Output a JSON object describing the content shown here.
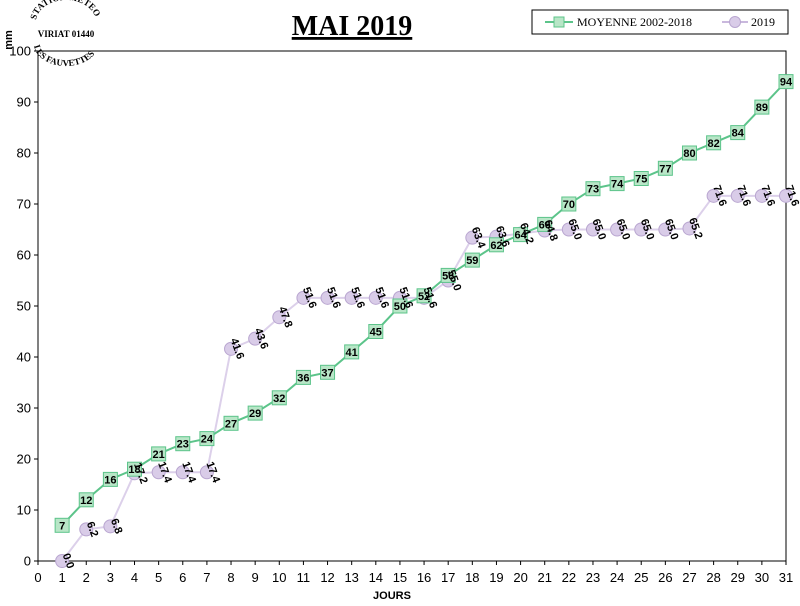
{
  "stamp": {
    "line1": "STATION METEO",
    "line2": "VIRIAT 01440",
    "line3": "LES FAUVETTES"
  },
  "chart_data": {
    "type": "line",
    "title": "MAI 2019",
    "xlabel": "JOURS",
    "ylabel": "mm",
    "xlim": [
      0,
      31
    ],
    "ylim": [
      0,
      100
    ],
    "xticks": [
      0,
      1,
      2,
      3,
      4,
      5,
      6,
      7,
      8,
      9,
      10,
      11,
      12,
      13,
      14,
      15,
      16,
      17,
      18,
      19,
      20,
      21,
      22,
      23,
      24,
      25,
      26,
      27,
      28,
      29,
      30,
      31
    ],
    "yticks": [
      0,
      10,
      20,
      30,
      40,
      50,
      60,
      70,
      80,
      90,
      100
    ],
    "grid": false,
    "legend_position": "top-right",
    "series": [
      {
        "name": "MOYENNE 2002-2018",
        "color": "#5cc48a",
        "fill": "#b8e6c7",
        "marker": "square",
        "x": [
          1,
          2,
          3,
          4,
          5,
          6,
          7,
          8,
          9,
          10,
          11,
          12,
          13,
          14,
          15,
          16,
          17,
          18,
          19,
          20,
          21,
          22,
          23,
          24,
          25,
          26,
          27,
          28,
          29,
          30,
          31
        ],
        "values": [
          7,
          12,
          16,
          18,
          21,
          23,
          24,
          27,
          29,
          32,
          36,
          37,
          41,
          45,
          50,
          52,
          56,
          59,
          62,
          64,
          66,
          70,
          73,
          74,
          75,
          77,
          80,
          82,
          84,
          89,
          94
        ],
        "labels": [
          "7",
          "12",
          "16",
          "18",
          "21",
          "23",
          "24",
          "27",
          "29",
          "32",
          "36",
          "37",
          "41",
          "45",
          "50",
          "52",
          "56",
          "59",
          "62",
          "64",
          "66",
          "70",
          "73",
          "74",
          "75",
          "77",
          "80",
          "82",
          "84",
          "89",
          "94"
        ]
      },
      {
        "name": "2019",
        "color": "#dcd0ea",
        "fill": "#d9cce8",
        "marker": "circle",
        "x": [
          1,
          2,
          3,
          4,
          5,
          6,
          7,
          8,
          9,
          10,
          11,
          12,
          13,
          14,
          15,
          16,
          17,
          18,
          19,
          20,
          21,
          22,
          23,
          24,
          25,
          26,
          27,
          28,
          29,
          30,
          31
        ],
        "values": [
          0.0,
          6.2,
          6.8,
          17.2,
          17.4,
          17.4,
          17.4,
          41.6,
          43.6,
          47.8,
          51.6,
          51.6,
          51.6,
          51.6,
          51.6,
          51.6,
          55.0,
          63.4,
          63.6,
          64.2,
          64.8,
          65.0,
          65.0,
          65.0,
          65.0,
          65.0,
          65.2,
          71.6,
          71.6,
          71.6,
          71.6
        ],
        "labels": [
          "0.0",
          "6.2",
          "6.8",
          "17.2",
          "17.4",
          "17.4",
          "17.4",
          "41.6",
          "43.6",
          "47.8",
          "51.6",
          "51.6",
          "51.6",
          "51.6",
          "51.6",
          "51.6",
          "55.0",
          "63.4",
          "63.6",
          "64.2",
          "64.8",
          "65.0",
          "65.0",
          "65.0",
          "65.0",
          "65.0",
          "65.2",
          "71.6",
          "71.6",
          "71.6",
          "71.6"
        ]
      }
    ]
  }
}
